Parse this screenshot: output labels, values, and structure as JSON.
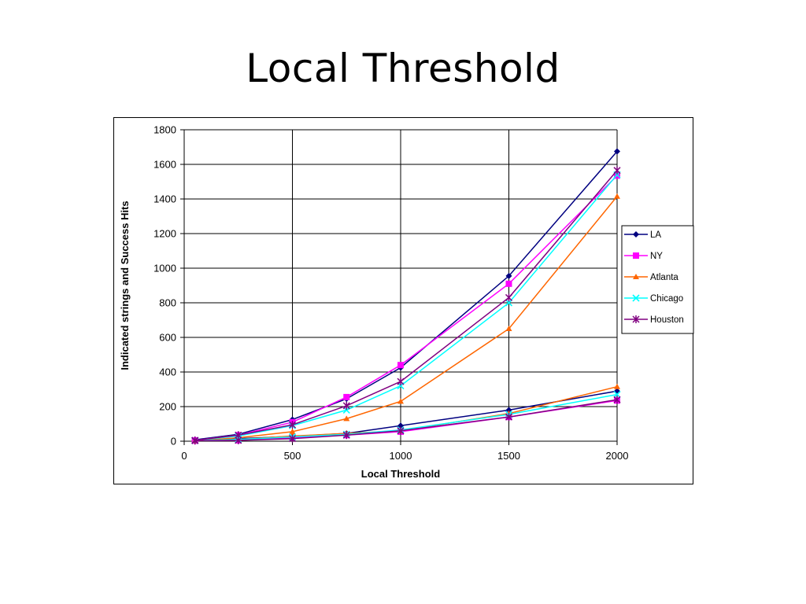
{
  "slide": {
    "title": "Local Threshold"
  },
  "chart_data": {
    "type": "line",
    "title": "",
    "xlabel": "Local Threshold",
    "ylabel": "Indicated strings and Success Hits",
    "xlim": [
      0,
      2000
    ],
    "ylim": [
      0,
      1800
    ],
    "x_ticks": [
      "0",
      "500",
      "1000",
      "1500",
      "2000"
    ],
    "y_ticks": [
      "0",
      "200",
      "400",
      "600",
      "800",
      "1000",
      "1200",
      "1400",
      "1600",
      "1800"
    ],
    "grid": true,
    "legend_position": "right",
    "x": [
      50,
      250,
      500,
      750,
      1000,
      1500,
      2000
    ],
    "series": [
      {
        "name": "LA",
        "color": "#000080",
        "marker": "diamond",
        "values": [
          8,
          40,
          125,
          245,
          425,
          955,
          1675
        ]
      },
      {
        "name": "LA",
        "color": "#000080",
        "marker": "diamond",
        "legend": false,
        "values": [
          5,
          15,
          28,
          45,
          90,
          180,
          290
        ]
      },
      {
        "name": "NY",
        "color": "#ff00ff",
        "marker": "square",
        "values": [
          5,
          35,
          110,
          255,
          440,
          910,
          1535
        ]
      },
      {
        "name": "NY",
        "color": "#ff00ff",
        "marker": "square",
        "legend": false,
        "values": [
          3,
          5,
          20,
          35,
          55,
          140,
          235
        ]
      },
      {
        "name": "Atlanta",
        "color": "#ff6600",
        "marker": "triangle",
        "values": [
          3,
          20,
          55,
          130,
          230,
          650,
          1415
        ]
      },
      {
        "name": "Atlanta",
        "color": "#ff6600",
        "marker": "triangle",
        "legend": false,
        "values": [
          3,
          10,
          30,
          45,
          60,
          160,
          315
        ]
      },
      {
        "name": "Chicago",
        "color": "#00ffff",
        "marker": "x",
        "values": [
          5,
          30,
          90,
          180,
          320,
          800,
          1540
        ]
      },
      {
        "name": "Chicago",
        "color": "#00ffff",
        "marker": "x",
        "legend": false,
        "values": [
          3,
          10,
          25,
          40,
          65,
          155,
          270
        ]
      },
      {
        "name": "Houston",
        "color": "#800080",
        "marker": "star",
        "values": [
          5,
          35,
          95,
          205,
          345,
          830,
          1565
        ]
      },
      {
        "name": "Houston",
        "color": "#800080",
        "marker": "star",
        "legend": false,
        "values": [
          3,
          5,
          15,
          35,
          60,
          140,
          240
        ]
      }
    ]
  }
}
